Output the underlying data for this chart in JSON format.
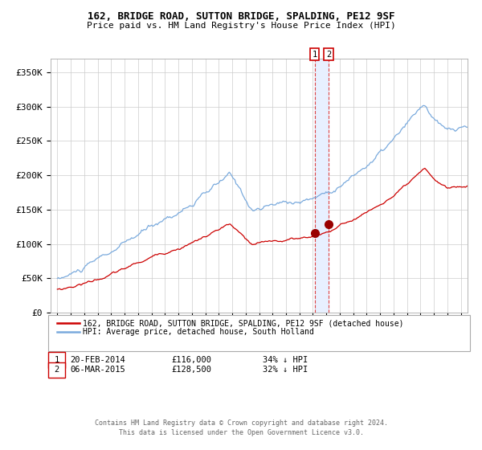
{
  "title": "162, BRIDGE ROAD, SUTTON BRIDGE, SPALDING, PE12 9SF",
  "subtitle": "Price paid vs. HM Land Registry's House Price Index (HPI)",
  "legend_line1": "162, BRIDGE ROAD, SUTTON BRIDGE, SPALDING, PE12 9SF (detached house)",
  "legend_line2": "HPI: Average price, detached house, South Holland",
  "footer1": "Contains HM Land Registry data © Crown copyright and database right 2024.",
  "footer2": "This data is licensed under the Open Government Licence v3.0.",
  "transactions": [
    {
      "label": "1",
      "date": "20-FEB-2014",
      "price": 116000,
      "pct": "34% ↓ HPI",
      "x": 2014.13
    },
    {
      "label": "2",
      "date": "06-MAR-2015",
      "price": 128500,
      "pct": "32% ↓ HPI",
      "x": 2015.18
    }
  ],
  "hpi_color": "#7aaadd",
  "property_color": "#cc0000",
  "marker_color": "#990000",
  "vspan_color": "#e8f0ff",
  "vline_color": "#dd4444",
  "background_color": "#ffffff",
  "grid_color": "#cccccc",
  "ylim": [
    0,
    370000
  ],
  "xlim": [
    1994.5,
    2025.5
  ],
  "yticks": [
    0,
    50000,
    100000,
    150000,
    200000,
    250000,
    300000,
    350000
  ],
  "ytick_labels": [
    "£0",
    "£50K",
    "£100K",
    "£150K",
    "£200K",
    "£250K",
    "£300K",
    "£350K"
  ],
  "xticks": [
    1995,
    1996,
    1997,
    1998,
    1999,
    2000,
    2001,
    2002,
    2003,
    2004,
    2005,
    2006,
    2007,
    2008,
    2009,
    2010,
    2011,
    2012,
    2013,
    2014,
    2015,
    2016,
    2017,
    2018,
    2019,
    2020,
    2021,
    2022,
    2023,
    2024,
    2025
  ]
}
